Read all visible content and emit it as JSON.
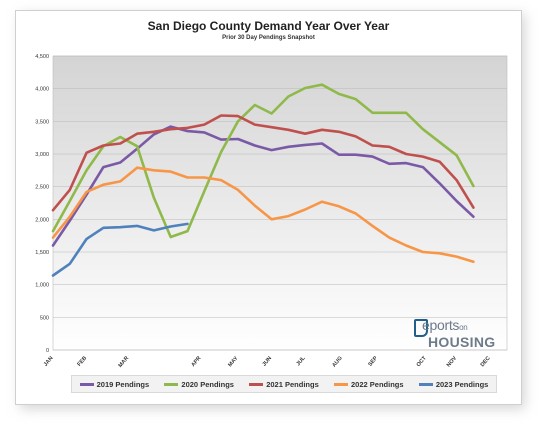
{
  "chart_data": {
    "type": "line",
    "title": "San Diego County Demand Year Over Year",
    "subtitle": "Prior 30 Day Pendings Snapshot",
    "ylim": [
      0,
      4500
    ],
    "y_ticks": [
      0,
      500,
      1000,
      1500,
      2000,
      2500,
      3000,
      3500,
      4000,
      4500
    ],
    "y_tick_labels": [
      "0",
      "500",
      "1,000",
      "1,500",
      "2,000",
      "2,500",
      "3,000",
      "3,500",
      "4,000",
      "4,500"
    ],
    "x_labels": [
      {
        "label": "JAN",
        "x": 0
      },
      {
        "label": "FEB",
        "x": 2
      },
      {
        "label": "MAR",
        "x": 4.5
      },
      {
        "label": "APR",
        "x": 8.8
      },
      {
        "label": "MAY",
        "x": 11
      },
      {
        "label": "JUN",
        "x": 13
      },
      {
        "label": "JUL",
        "x": 15
      },
      {
        "label": "AUG",
        "x": 17.2
      },
      {
        "label": "SEP",
        "x": 19.3
      },
      {
        "label": "OCT",
        "x": 22.2
      },
      {
        "label": "NOV",
        "x": 24
      },
      {
        "label": "DEC",
        "x": 26
      }
    ],
    "x_range": [
      0,
      27
    ],
    "grid": true,
    "legend_position": "bottom",
    "series": [
      {
        "name": "2019 Pendings",
        "color": "#7a5aa6",
        "points": [
          [
            0,
            1600
          ],
          [
            1,
            1980
          ],
          [
            2,
            2380
          ],
          [
            3,
            2800
          ],
          [
            4,
            2870
          ],
          [
            5,
            3080
          ],
          [
            6,
            3300
          ],
          [
            7,
            3420
          ],
          [
            8,
            3350
          ],
          [
            9,
            3330
          ],
          [
            10,
            3220
          ],
          [
            11,
            3230
          ],
          [
            12,
            3130
          ],
          [
            13,
            3060
          ],
          [
            14,
            3110
          ],
          [
            15,
            3140
          ],
          [
            16,
            3160
          ],
          [
            17,
            2990
          ],
          [
            18,
            2990
          ],
          [
            19,
            2960
          ],
          [
            20,
            2850
          ],
          [
            21,
            2860
          ],
          [
            22,
            2800
          ],
          [
            23,
            2550
          ],
          [
            24,
            2280
          ],
          [
            25,
            2040
          ]
        ]
      },
      {
        "name": "2020 Pendings",
        "color": "#8fb94a",
        "points": [
          [
            0,
            1820
          ],
          [
            1,
            2280
          ],
          [
            2,
            2750
          ],
          [
            3,
            3120
          ],
          [
            4,
            3260
          ],
          [
            5,
            3120
          ],
          [
            6,
            2330
          ],
          [
            7,
            1730
          ],
          [
            8,
            1820
          ],
          [
            9,
            2430
          ],
          [
            10,
            3030
          ],
          [
            11,
            3500
          ],
          [
            12,
            3750
          ],
          [
            13,
            3620
          ],
          [
            14,
            3880
          ],
          [
            15,
            4010
          ],
          [
            16,
            4060
          ],
          [
            17,
            3920
          ],
          [
            18,
            3840
          ],
          [
            19,
            3630
          ],
          [
            20,
            3630
          ],
          [
            21,
            3630
          ],
          [
            22,
            3380
          ],
          [
            23,
            3180
          ],
          [
            24,
            2980
          ],
          [
            25,
            2510
          ]
        ]
      },
      {
        "name": "2021 Pendings",
        "color": "#c0504d",
        "points": [
          [
            0,
            2140
          ],
          [
            1,
            2450
          ],
          [
            2,
            3020
          ],
          [
            3,
            3130
          ],
          [
            4,
            3160
          ],
          [
            5,
            3310
          ],
          [
            6,
            3340
          ],
          [
            7,
            3380
          ],
          [
            8,
            3400
          ],
          [
            9,
            3450
          ],
          [
            10,
            3590
          ],
          [
            11,
            3580
          ],
          [
            12,
            3450
          ],
          [
            13,
            3410
          ],
          [
            14,
            3370
          ],
          [
            15,
            3310
          ],
          [
            16,
            3370
          ],
          [
            17,
            3340
          ],
          [
            18,
            3270
          ],
          [
            19,
            3130
          ],
          [
            20,
            3110
          ],
          [
            21,
            3000
          ],
          [
            22,
            2960
          ],
          [
            23,
            2880
          ],
          [
            24,
            2600
          ],
          [
            25,
            2180
          ]
        ]
      },
      {
        "name": "2022 Pendings",
        "color": "#f79646",
        "points": [
          [
            0,
            1720
          ],
          [
            1,
            2040
          ],
          [
            2,
            2420
          ],
          [
            3,
            2530
          ],
          [
            4,
            2580
          ],
          [
            5,
            2790
          ],
          [
            6,
            2750
          ],
          [
            7,
            2730
          ],
          [
            8,
            2640
          ],
          [
            9,
            2640
          ],
          [
            10,
            2600
          ],
          [
            11,
            2450
          ],
          [
            12,
            2210
          ],
          [
            13,
            2000
          ],
          [
            14,
            2050
          ],
          [
            15,
            2150
          ],
          [
            16,
            2270
          ],
          [
            17,
            2200
          ],
          [
            18,
            2090
          ],
          [
            19,
            1900
          ],
          [
            20,
            1720
          ],
          [
            21,
            1600
          ],
          [
            22,
            1500
          ],
          [
            23,
            1480
          ],
          [
            24,
            1430
          ],
          [
            25,
            1350
          ]
        ]
      },
      {
        "name": "2023 Pendings",
        "color": "#4f81bd",
        "points": [
          [
            0,
            1140
          ],
          [
            1,
            1320
          ],
          [
            2,
            1700
          ],
          [
            3,
            1870
          ],
          [
            4,
            1880
          ],
          [
            5,
            1900
          ],
          [
            6,
            1830
          ],
          [
            7,
            1890
          ],
          [
            8,
            1930
          ]
        ]
      }
    ]
  },
  "logo": {
    "line1": "eports",
    "line1_small": "on",
    "line2": "HOUSING"
  }
}
